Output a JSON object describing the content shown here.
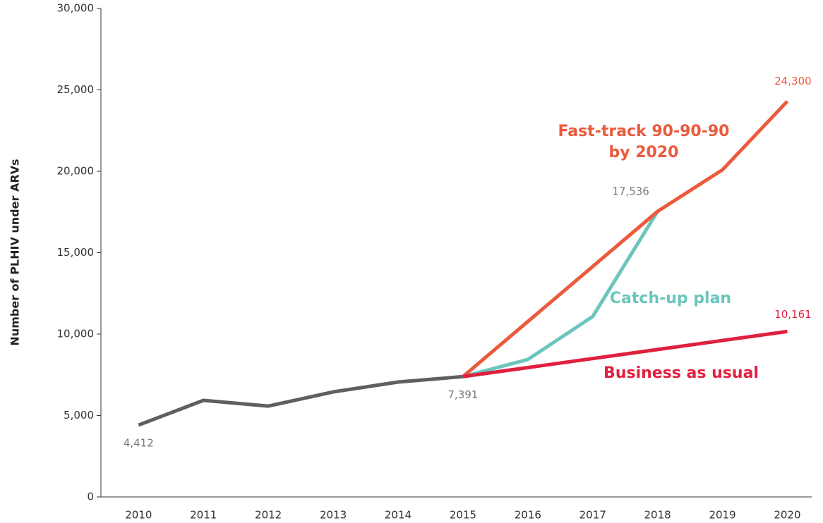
{
  "chart_data": {
    "type": "line",
    "y_label": "Number of PLHIV under ARVs",
    "x": [
      2010,
      2011,
      2012,
      2013,
      2014,
      2015,
      2016,
      2017,
      2018,
      2019,
      2020
    ],
    "xlim": [
      2009.42,
      2020.55
    ],
    "xticks": [
      2010,
      2011,
      2012,
      2013,
      2014,
      2015,
      2016,
      2017,
      2018,
      2019,
      2020
    ],
    "ylim": [
      0,
      30000
    ],
    "yticks": [
      0,
      {
        "value": 5000,
        "label": "5,000"
      },
      {
        "value": 10000,
        "label": "10,000"
      },
      {
        "value": 15000,
        "label": "15,000"
      },
      {
        "value": 20000,
        "label": "20,000"
      },
      {
        "value": 25000,
        "label": "25,000"
      },
      {
        "value": 30000,
        "label": "30,000"
      }
    ],
    "series": [
      {
        "color": "#5f5f5f",
        "values": [
          4412,
          5930,
          5580,
          6450,
          7055,
          7391,
          null,
          null,
          null,
          null,
          null
        ],
        "value_labels": [
          "4,412",
          null,
          null,
          null,
          null,
          "7,391",
          null,
          null,
          null,
          null,
          null
        ]
      },
      {
        "name": "Catch-up plan",
        "color": "#6cc5bc",
        "values": [
          null,
          null,
          null,
          null,
          null,
          7391,
          8440,
          11080,
          17536,
          null,
          null
        ],
        "value_labels": [
          null,
          null,
          null,
          null,
          null,
          null,
          null,
          null,
          "17,536",
          null,
          null
        ]
      },
      {
        "name": "Fast-track 90-90-90 by 2020",
        "color": "#eb5a3c",
        "values": [
          null,
          null,
          null,
          null,
          null,
          7391,
          10770,
          14150,
          17536,
          20090,
          24300
        ],
        "value_labels": [
          null,
          null,
          null,
          null,
          null,
          null,
          null,
          null,
          null,
          null,
          "24,300"
        ]
      },
      {
        "name": "Business as usual",
        "color": "#e0203f",
        "values": [
          null,
          null,
          null,
          null,
          null,
          7391,
          7945,
          8499,
          9053,
          9607,
          10161
        ],
        "value_labels": [
          null,
          null,
          null,
          null,
          null,
          null,
          null,
          null,
          null,
          null,
          "10,161"
        ]
      }
    ]
  }
}
